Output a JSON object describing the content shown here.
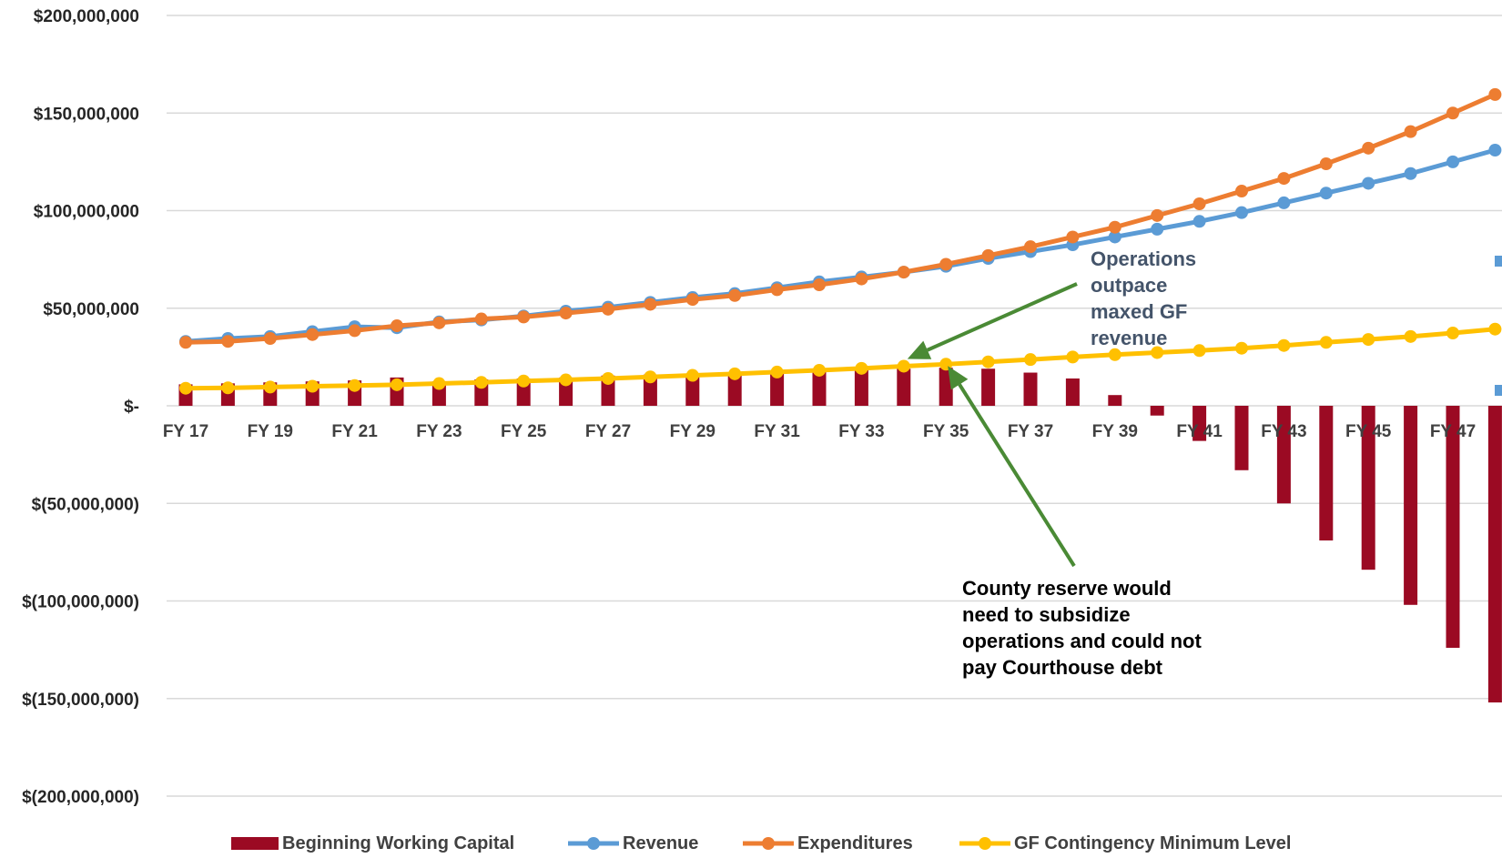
{
  "chart_data": {
    "type": "bar",
    "categories": [
      "FY 17",
      "FY 18",
      "FY 19",
      "FY 20",
      "FY 21",
      "FY 22",
      "FY 23",
      "FY 24",
      "FY 25",
      "FY 26",
      "FY 27",
      "FY 28",
      "FY 29",
      "FY 30",
      "FY 31",
      "FY 32",
      "FY 33",
      "FY 34",
      "FY 35",
      "FY 36",
      "FY 37",
      "FY 38",
      "FY 39",
      "FY 40",
      "FY 41",
      "FY 42",
      "FY 43",
      "FY 44",
      "FY 45",
      "FY 46",
      "FY 47",
      "FY 48"
    ],
    "tick_labels": [
      "FY 17",
      "FY 19",
      "FY 21",
      "FY 23",
      "FY 25",
      "FY 27",
      "FY 29",
      "FY 31",
      "FY 33",
      "FY 35",
      "FY 37",
      "FY 39",
      "FY 41",
      "FY 43",
      "FY 45",
      "FY 47"
    ],
    "y_tick_labels": [
      "$200,000,000",
      "$150,000,000",
      "$100,000,000",
      "$50,000,000",
      "$-",
      "$(50,000,000)",
      "$(100,000,000)",
      "$(150,000,000)",
      "$(200,000,000)"
    ],
    "ylim": [
      -200000000,
      200000000
    ],
    "grid": true,
    "legend_position": "bottom",
    "series": [
      {
        "name": "Beginning Working Capital",
        "kind": "bar",
        "color": "#9b0a23",
        "values": [
          11000000,
          11500000,
          12000000,
          12500000,
          13000000,
          14500000,
          12500000,
          13500000,
          14000000,
          14500000,
          15500000,
          16000000,
          16500000,
          17000000,
          17500000,
          18000000,
          18500000,
          19000000,
          19500000,
          19000000,
          17000000,
          14000000,
          5500000,
          -5000000,
          -18000000,
          -33000000,
          -50000000,
          -69000000,
          -84000000,
          -102000000,
          -124000000,
          -152000000
        ]
      },
      {
        "name": "Revenue",
        "kind": "line",
        "color": "#5b9bd5",
        "values": [
          33000000,
          34500000,
          35500000,
          38000000,
          40500000,
          40000000,
          43000000,
          44000000,
          46000000,
          48500000,
          50500000,
          53000000,
          55500000,
          57500000,
          60500000,
          63500000,
          66000000,
          68500000,
          71500000,
          75500000,
          79000000,
          82500000,
          86500000,
          90500000,
          94500000,
          99000000,
          104000000,
          109000000,
          114000000,
          119000000,
          125000000,
          131000000
        ]
      },
      {
        "name": "Expenditures",
        "kind": "line",
        "color": "#ed7d31",
        "values": [
          32500000,
          33000000,
          34500000,
          36500000,
          38500000,
          41000000,
          42500000,
          44500000,
          45500000,
          47500000,
          49500000,
          52000000,
          54500000,
          56500000,
          59500000,
          62000000,
          65000000,
          68500000,
          72500000,
          77000000,
          81500000,
          86500000,
          91500000,
          97500000,
          103500000,
          110000000,
          116500000,
          124000000,
          132000000,
          140500000,
          150000000,
          159500000
        ]
      },
      {
        "name": "GF Contingency Minimum Level",
        "kind": "line",
        "color": "#ffc000",
        "values": [
          9000000,
          9200000,
          9600000,
          10000000,
          10400000,
          10800000,
          11400000,
          12000000,
          12700000,
          13300000,
          14000000,
          14800000,
          15600000,
          16400000,
          17300000,
          18200000,
          19200000,
          20300000,
          21300000,
          22500000,
          23700000,
          25000000,
          26200000,
          27300000,
          28300000,
          29500000,
          30900000,
          32500000,
          34000000,
          35500000,
          37300000,
          39300000
        ]
      }
    ],
    "annotations": [
      {
        "id": "operations",
        "text": "Operations outpace maxed GF revenue",
        "color": "#44546a",
        "points_to_category": "FY 34"
      },
      {
        "id": "county",
        "text": "County reserve would need to subsidize operations and could not pay Courthouse debt",
        "color": "#000000",
        "points_to_category": "FY 35"
      }
    ],
    "arrow_color": "#4a8a35"
  }
}
